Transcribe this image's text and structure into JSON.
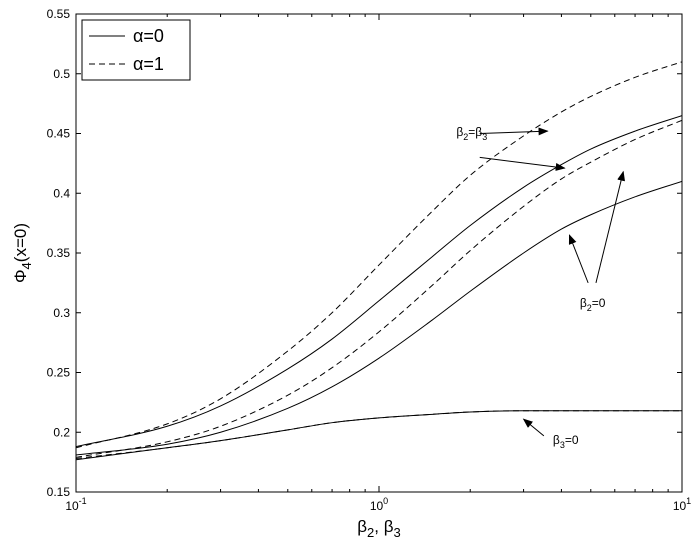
{
  "chart_data": {
    "type": "line",
    "xscale": "log",
    "xlim": [
      0.1,
      10
    ],
    "ylim": [
      0.15,
      0.55
    ],
    "xticks": [
      {
        "value": 0.1,
        "base": "10",
        "exp": "-1"
      },
      {
        "value": 1,
        "base": "10",
        "exp": "0"
      },
      {
        "value": 10,
        "base": "10",
        "exp": "1"
      }
    ],
    "yticks": [
      "0.15",
      "0.2",
      "0.25",
      "0.3",
      "0.35",
      "0.4",
      "0.45",
      "0.5",
      "0.55"
    ],
    "ylabel": {
      "main": "Φ",
      "sub": "4",
      "rest": "(x=0)"
    },
    "xlabel": {
      "p1": "β",
      "s1": "2",
      "mid": ", β",
      "s2": "3"
    },
    "grid": false,
    "legend_position": "top-left",
    "legend": [
      {
        "label": "α=0",
        "style": "solid"
      },
      {
        "label": "α=1",
        "style": "dashed"
      }
    ],
    "series": [
      {
        "group": "β2=β3",
        "style": "dashed",
        "x": [
          0.1,
          0.2,
          0.3,
          0.5,
          0.7,
          1,
          1.5,
          2,
          3,
          4,
          5,
          7,
          10
        ],
        "y": [
          0.187,
          0.207,
          0.228,
          0.268,
          0.3,
          0.34,
          0.385,
          0.415,
          0.448,
          0.468,
          0.481,
          0.497,
          0.51
        ]
      },
      {
        "group": "β2=β3",
        "style": "solid",
        "x": [
          0.1,
          0.2,
          0.3,
          0.5,
          0.7,
          1,
          1.5,
          2,
          3,
          4,
          5,
          7,
          10
        ],
        "y": [
          0.188,
          0.205,
          0.222,
          0.253,
          0.278,
          0.31,
          0.347,
          0.373,
          0.405,
          0.424,
          0.437,
          0.452,
          0.465
        ]
      },
      {
        "group": "β2=0",
        "style": "dashed",
        "x": [
          0.1,
          0.2,
          0.3,
          0.5,
          0.7,
          1,
          1.5,
          2,
          3,
          4,
          5,
          7,
          10
        ],
        "y": [
          0.179,
          0.192,
          0.205,
          0.231,
          0.254,
          0.284,
          0.323,
          0.352,
          0.389,
          0.412,
          0.426,
          0.445,
          0.461
        ]
      },
      {
        "group": "β2=0",
        "style": "solid",
        "x": [
          0.1,
          0.2,
          0.3,
          0.5,
          0.7,
          1,
          1.5,
          2,
          3,
          4,
          5,
          7,
          10
        ],
        "y": [
          0.181,
          0.19,
          0.2,
          0.22,
          0.238,
          0.262,
          0.294,
          0.318,
          0.35,
          0.37,
          0.382,
          0.397,
          0.41
        ]
      },
      {
        "group": "β3=0",
        "style": "solid",
        "x": [
          0.1,
          0.2,
          0.3,
          0.5,
          0.7,
          1,
          1.5,
          2,
          3,
          4,
          5,
          7,
          10
        ],
        "y": [
          0.177,
          0.187,
          0.193,
          0.202,
          0.208,
          0.212,
          0.215,
          0.217,
          0.218,
          0.218,
          0.218,
          0.218,
          0.218
        ]
      },
      {
        "group": "β3=0",
        "style": "dashed",
        "x": [
          0.1,
          0.2,
          0.3,
          0.5,
          0.7,
          1,
          1.5,
          2,
          3,
          4,
          5,
          7,
          10
        ],
        "y": [
          0.178,
          0.187,
          0.193,
          0.202,
          0.208,
          0.212,
          0.215,
          0.217,
          0.218,
          0.218,
          0.218,
          0.218,
          0.218
        ]
      }
    ],
    "annotations": [
      {
        "id": "eq",
        "base": "β",
        "s1": "2",
        "mid": "=β",
        "s2": "3",
        "x": 1.8,
        "y": 0.448,
        "arrows": [
          {
            "from": [
              2.15,
              0.45
            ],
            "to": [
              3.6,
              0.452
            ]
          },
          {
            "from": [
              2.15,
              0.43
            ],
            "to": [
              4.1,
              0.421
            ]
          }
        ]
      },
      {
        "id": "b2",
        "base": "β",
        "s1": "2",
        "mid": "=0",
        "s2": "",
        "x": 4.6,
        "y": 0.305,
        "arrows": [
          {
            "from": [
              4.9,
              0.325
            ],
            "to": [
              4.25,
              0.365
            ]
          },
          {
            "from": [
              5.2,
              0.325
            ],
            "to": [
              6.4,
              0.418
            ]
          }
        ]
      },
      {
        "id": "b3",
        "base": "β",
        "s1": "3",
        "mid": "=0",
        "s2": "",
        "x": 3.75,
        "y": 0.19,
        "arrows": [
          {
            "from": [
              3.5,
              0.197
            ],
            "to": [
              3.0,
              0.211
            ]
          }
        ]
      }
    ]
  }
}
